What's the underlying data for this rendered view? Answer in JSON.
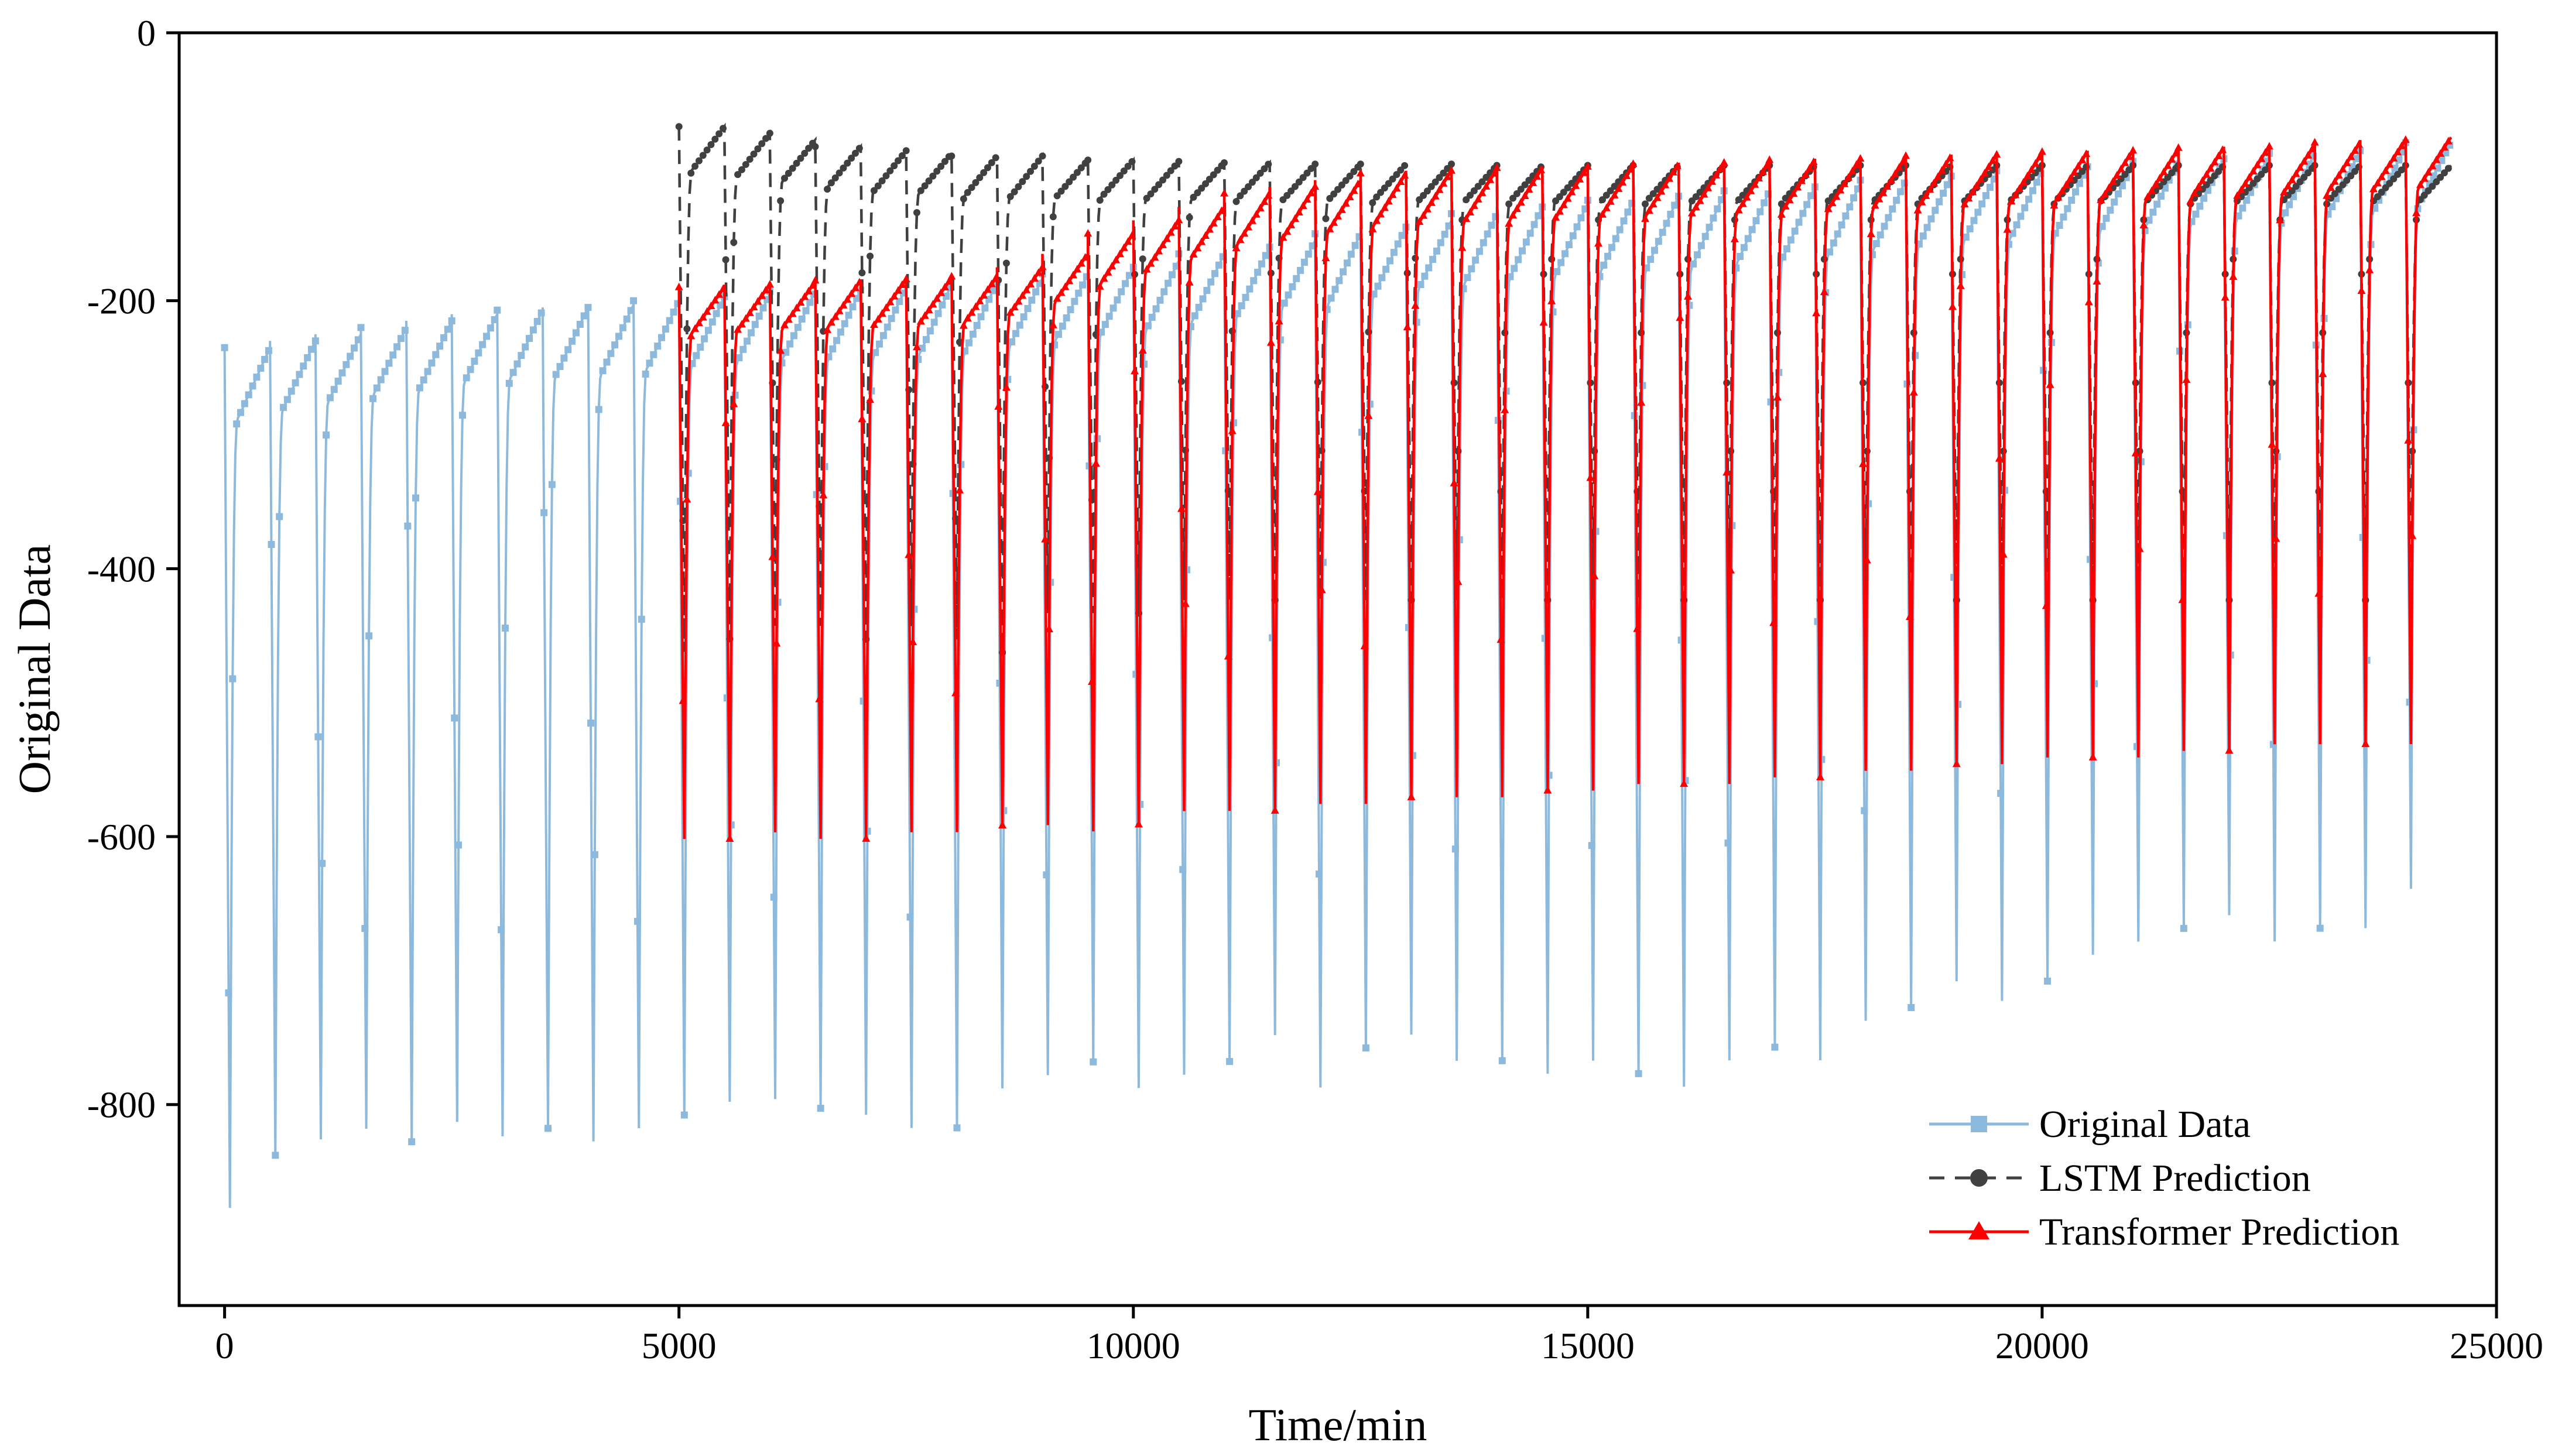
{
  "chart_data": {
    "type": "line",
    "title": "",
    "xlabel": "Time/min",
    "ylabel": "Original Data",
    "xlim": [
      -500,
      25000
    ],
    "ylim": [
      -950,
      0
    ],
    "xticks": [
      0,
      5000,
      10000,
      15000,
      20000,
      25000
    ],
    "yticks": [
      0,
      -200,
      -400,
      -600,
      -800
    ],
    "xtick_labels": [
      "0",
      "5000",
      "10000",
      "15000",
      "20000",
      "25000"
    ],
    "ytick_labels": [
      "0",
      "-200",
      "-400",
      "-600",
      "-800"
    ],
    "legend_position": "bottom-right",
    "series": [
      {
        "name": "Original Data",
        "color": "#8db9dc",
        "marker": "square",
        "line_style": "solid",
        "x_range": [
          0,
          24500
        ],
        "cycle_min": 500,
        "cycle_count": 49,
        "cycle_peaks": [
          -235,
          -230,
          -225,
          -220,
          -215,
          -210,
          -207,
          -205,
          -203,
          -200,
          -197,
          -195,
          -193,
          -192,
          -190,
          -188,
          -186,
          -183,
          -180,
          -175,
          -170,
          -165,
          -160,
          -155,
          -150,
          -145,
          -140,
          -135,
          -130,
          -127,
          -125,
          -122,
          -120,
          -118,
          -115,
          -112,
          -110,
          -107,
          -105,
          -103,
          -100,
          -98,
          -96,
          -94,
          -92,
          -90,
          -88,
          -85,
          -82
        ],
        "cycle_troughs": [
          -890,
          -850,
          -838,
          -830,
          -840,
          -825,
          -836,
          -830,
          -840,
          -830,
          -820,
          -810,
          -808,
          -815,
          -820,
          -830,
          -830,
          -800,
          -790,
          -780,
          -800,
          -790,
          -780,
          -760,
          -800,
          -770,
          -760,
          -780,
          -780,
          -790,
          -780,
          -790,
          -800,
          -780,
          -770,
          -780,
          -750,
          -740,
          -720,
          -735,
          -720,
          -700,
          -690,
          -680,
          -670,
          -690,
          -680,
          -680,
          -650
        ]
      },
      {
        "name": "LSTM Prediction",
        "color": "#404040",
        "marker": "circle",
        "line_style": "dashed",
        "x_range": [
          5000,
          24500
        ],
        "cycle_peaks": [
          -70,
          -75,
          -80,
          -85,
          -88,
          -90,
          -92,
          -92,
          -95,
          -95,
          -96,
          -97,
          -97,
          -98,
          -98,
          -98,
          -98,
          -99,
          -99,
          -99,
          -99,
          -99,
          -99,
          -99,
          -99,
          -99,
          -99,
          -99,
          -99,
          -99,
          -99,
          -99,
          -99,
          -99,
          -99,
          -99,
          -99,
          -99,
          -99
        ],
        "cycle_troughs": [
          -470,
          -460,
          -450,
          -450,
          -460,
          -450,
          -460,
          -470,
          -440,
          -440,
          -440,
          -430,
          -430,
          -430,
          -430,
          -430,
          -430,
          -430,
          -430,
          -430,
          -430,
          -430,
          -430,
          -430,
          -430,
          -430,
          -430,
          -430,
          -430,
          -430,
          -430,
          -430,
          -430,
          -430,
          -430,
          -430,
          -430,
          -430,
          -430
        ]
      },
      {
        "name": "Transformer Prediction",
        "color": "#ff0000",
        "marker": "triangle",
        "line_style": "solid",
        "x_range": [
          5000,
          24500
        ],
        "cycle_peaks": [
          -190,
          -188,
          -186,
          -185,
          -184,
          -183,
          -182,
          -175,
          -165,
          -150,
          -140,
          -130,
          -120,
          -115,
          -110,
          -105,
          -103,
          -102,
          -101,
          -100,
          -99,
          -98,
          -97,
          -96,
          -95,
          -94,
          -93,
          -92,
          -91,
          -90,
          -89,
          -88,
          -87,
          -86,
          -85,
          -84,
          -82,
          -80,
          -78
        ],
        "cycle_troughs": [
          -610,
          -610,
          -605,
          -610,
          -610,
          -605,
          -605,
          -600,
          -600,
          -605,
          -600,
          -590,
          -590,
          -590,
          -585,
          -585,
          -580,
          -580,
          -580,
          -575,
          -575,
          -570,
          -570,
          -570,
          -565,
          -565,
          -560,
          -560,
          -555,
          -555,
          -550,
          -550,
          -550,
          -545,
          -545,
          -540,
          -540,
          -540,
          -540
        ]
      }
    ]
  }
}
